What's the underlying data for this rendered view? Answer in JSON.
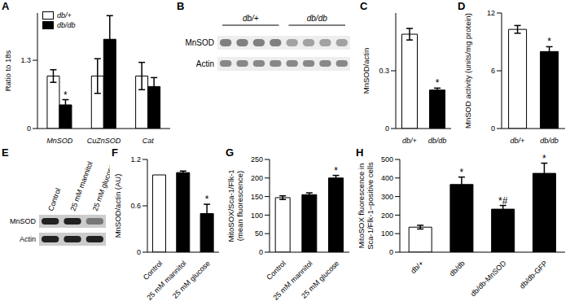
{
  "chart_data": [
    {
      "panel": "A",
      "type": "bar",
      "categories": [
        "MnSOD",
        "CuZnSOD",
        "Cat"
      ],
      "series": [
        {
          "name": "db/+",
          "color": "#ffffff",
          "values": [
            1.0,
            1.0,
            1.0
          ],
          "errors": [
            0.12,
            0.33,
            0.26
          ]
        },
        {
          "name": "db/db",
          "color": "#000000",
          "values": [
            0.45,
            1.7,
            0.8
          ],
          "errors": [
            0.1,
            0.45,
            0.17
          ],
          "marks": [
            "*",
            null,
            null
          ]
        }
      ],
      "ylim": [
        0,
        2.2
      ],
      "yticks": [
        0,
        1.3
      ],
      "y_label": "Ratio to 18s",
      "legend": "upper left"
    },
    {
      "panel": "B",
      "type": "blot",
      "groups": [
        {
          "label": "db/+",
          "lanes": 4
        },
        {
          "label": "db/db",
          "lanes": 4
        }
      ],
      "rows": [
        "MnSOD",
        "Actin"
      ]
    },
    {
      "panel": "C",
      "type": "bar",
      "categories": [
        "db/+",
        "db/db"
      ],
      "values": [
        0.49,
        0.2
      ],
      "errors": [
        0.03,
        0.01
      ],
      "colors": [
        "#ffffff",
        "#000000"
      ],
      "marks": [
        null,
        "*"
      ],
      "ylim": [
        0,
        0.6
      ],
      "yticks": [
        0,
        0.3
      ],
      "y_label": "MnSOD/actin"
    },
    {
      "panel": "D",
      "type": "bar",
      "categories": [
        "db/+",
        "db/db"
      ],
      "values": [
        10.3,
        8.0
      ],
      "errors": [
        0.4,
        0.5
      ],
      "colors": [
        "#ffffff",
        "#000000"
      ],
      "marks": [
        null,
        "*"
      ],
      "ylim": [
        0,
        12
      ],
      "yticks": [
        0,
        6,
        12
      ],
      "y_label": "MnSOD activity (units/mg protein)"
    },
    {
      "panel": "E",
      "type": "blot",
      "lanes": [
        "Control",
        "25 mM mannitol",
        "25 mM glucose"
      ],
      "rows": [
        "MnSOD",
        "Actin"
      ]
    },
    {
      "panel": "F",
      "type": "bar",
      "categories": [
        "Control",
        "25 mM mannitol",
        "25 mM glucose"
      ],
      "values": [
        1.0,
        1.03,
        0.5
      ],
      "errors": [
        0,
        0.02,
        0.12
      ],
      "colors": [
        "#ffffff",
        "#000000",
        "#000000"
      ],
      "marks": [
        null,
        null,
        "*"
      ],
      "ylim": [
        0,
        1.2
      ],
      "yticks": [
        0,
        0.6,
        1.2
      ],
      "y_label": "MnSOD/actin (AU)"
    },
    {
      "panel": "G",
      "type": "bar",
      "categories": [
        "Control",
        "25 mM mannitol",
        "25 mM glucose"
      ],
      "values": [
        147,
        155,
        200
      ],
      "errors": [
        5,
        5,
        7
      ],
      "colors": [
        "#ffffff",
        "#000000",
        "#000000"
      ],
      "marks": [
        null,
        null,
        "*"
      ],
      "ylim": [
        0,
        250
      ],
      "yticks": [
        0,
        50,
        100,
        150,
        200,
        250
      ],
      "y_label": "MitoSOX/Sca-1/Flk-1 (mean fluorescence)"
    },
    {
      "panel": "H",
      "type": "bar",
      "categories": [
        "db/+",
        "db/db",
        "db/db-MnSOD",
        "db/db-GFP"
      ],
      "values": [
        135,
        365,
        232,
        425
      ],
      "errors": [
        10,
        40,
        20,
        55
      ],
      "colors": [
        "#ffffff",
        "#000000",
        "#000000",
        "#000000"
      ],
      "marks": [
        null,
        "*",
        "*#",
        "*"
      ],
      "ylim": [
        0,
        500
      ],
      "yticks": [
        0,
        100,
        200,
        300,
        400,
        500
      ],
      "y_label": "MitoSOX fluorescence in Sca-1/Flk-1–positive cells"
    }
  ]
}
